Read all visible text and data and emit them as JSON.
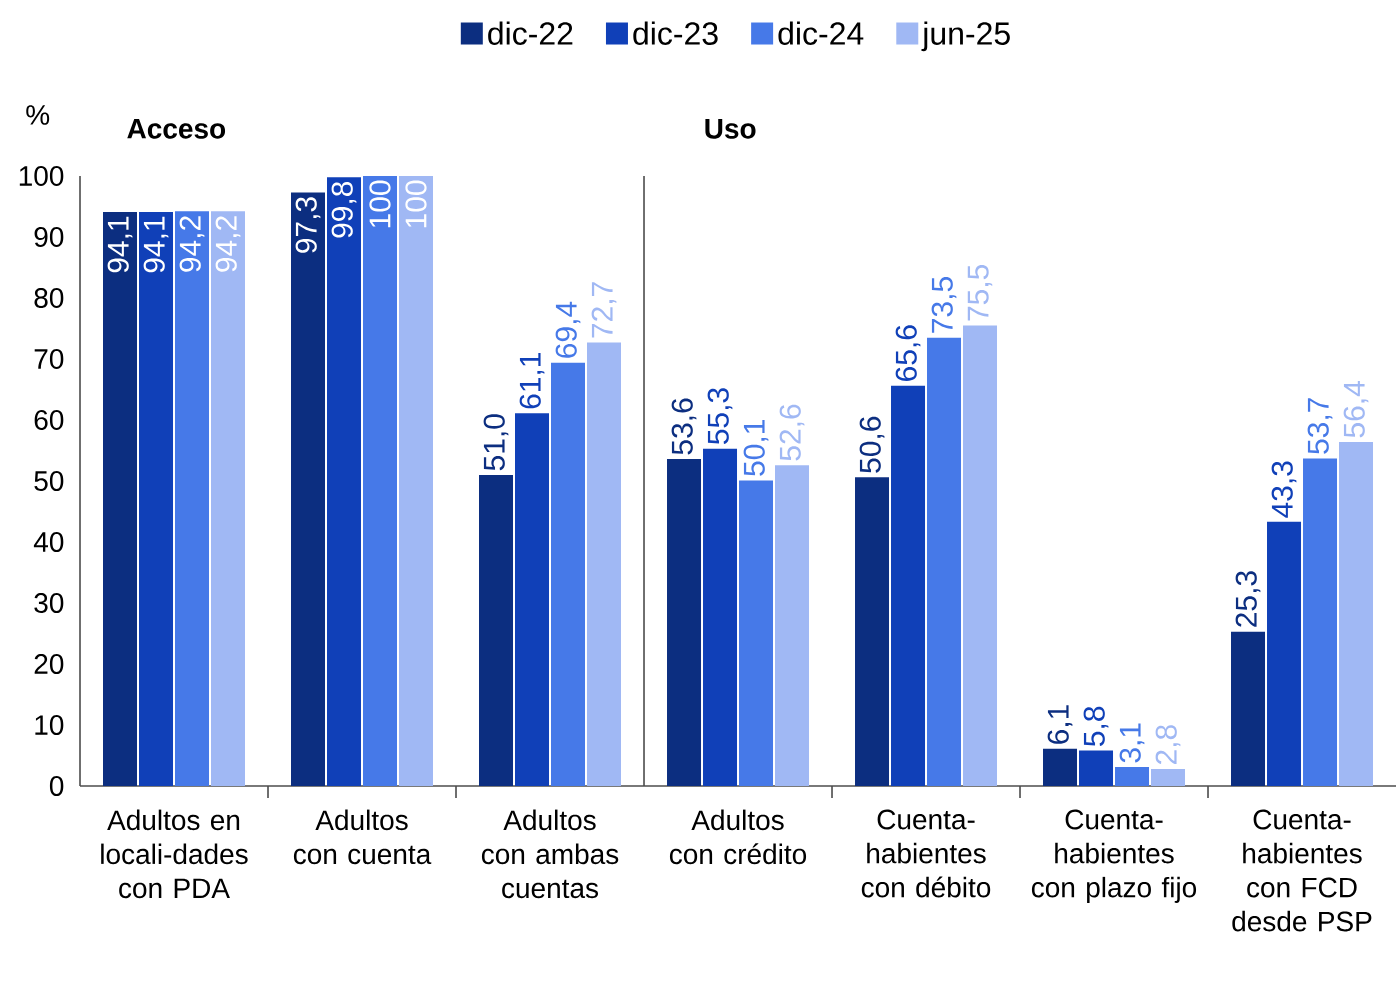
{
  "chart_data": [
    {
      "type": "bar",
      "title": "Acceso",
      "ylabel": "%",
      "categories": [
        "Adultos en locali-dades con PDA",
        "Adultos con cuenta",
        "Adultos con ambas cuentas"
      ],
      "series": [
        {
          "name": "dic-22",
          "color": "#0c2e80",
          "values": [
            94.1,
            97.3,
            51.0
          ],
          "value_labels": [
            "94,1",
            "97,3",
            "51,0"
          ]
        },
        {
          "name": "dic-23",
          "color": "#1040b8",
          "values": [
            94.1,
            99.8,
            61.1
          ],
          "value_labels": [
            "94,1",
            "99,8",
            "61,1"
          ]
        },
        {
          "name": "dic-24",
          "color": "#4679e8",
          "values": [
            94.2,
            100,
            69.4
          ],
          "value_labels": [
            "94,2",
            "100",
            "69,4"
          ]
        },
        {
          "name": "jun-25",
          "color": "#a0b8f4",
          "values": [
            94.2,
            100,
            72.7
          ],
          "value_labels": [
            "94,2",
            "100",
            "72,7"
          ]
        }
      ],
      "ylim": [
        0,
        100
      ],
      "yticks": [
        0,
        10,
        20,
        30,
        40,
        50,
        60,
        70,
        80,
        90,
        100
      ],
      "legend": "top"
    },
    {
      "type": "bar",
      "title": "Uso",
      "categories": [
        "Adultos con crédito",
        "Cuenta-habientes con débito",
        "Cuenta-habientes con plazo fijo",
        "Cuenta-habientes con FCD desde PSP"
      ],
      "series": [
        {
          "color": "#0c2e80",
          "values": [
            53.6,
            50.6,
            6.1,
            25.3
          ],
          "value_labels": [
            "53,6",
            "50,6",
            "6,1",
            "25,3"
          ]
        },
        {
          "color": "#1040b8",
          "values": [
            55.3,
            65.6,
            5.8,
            43.3
          ],
          "value_labels": [
            "55,3",
            "65,6",
            "5,8",
            "43,3"
          ]
        },
        {
          "color": "#4679e8",
          "values": [
            50.1,
            73.5,
            3.1,
            53.7
          ],
          "value_labels": [
            "50,1",
            "73,5",
            "3,1",
            "53,7"
          ]
        },
        {
          "color": "#a0b8f4",
          "values": [
            52.6,
            75.5,
            2.8,
            56.4
          ],
          "value_labels": [
            "52,6",
            "75,5",
            "2,8",
            "56,4"
          ]
        }
      ],
      "ylim": [
        0,
        100
      ],
      "tick_labels": "x"
    }
  ]
}
